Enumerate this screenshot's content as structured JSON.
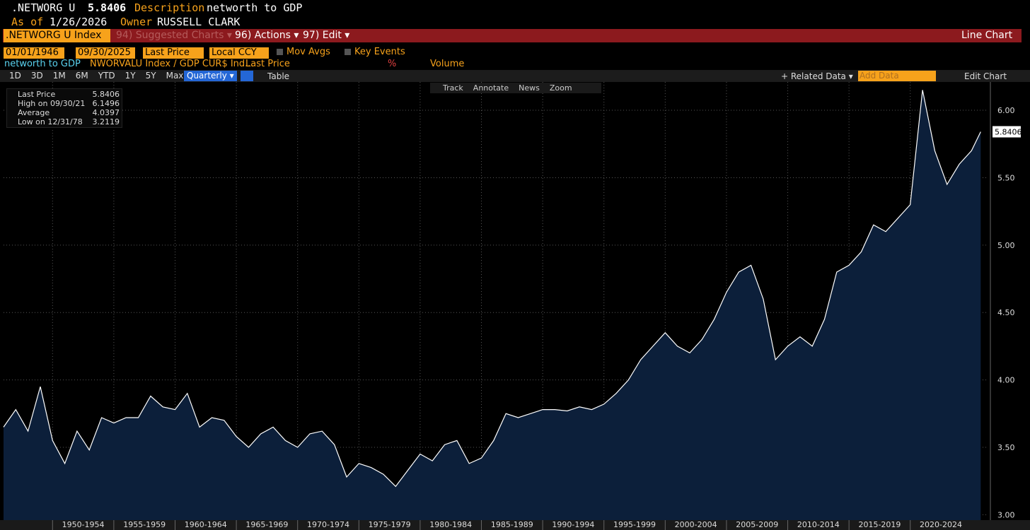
{
  "header": {
    "ticker": ".NETWORG U",
    "price": "5.8406",
    "description_label": "Description",
    "description": "networth to GDP",
    "asof_label": "As of",
    "date": "1/26/2026",
    "owner_label": "Owner",
    "owner": "RUSSELL CLARK"
  },
  "menubar": {
    "index": ".NETWORG U Index",
    "items": [
      "94) Suggested Charts ▾",
      "96) Actions ▾",
      "97) Edit ▾"
    ],
    "right": "Line Chart"
  },
  "controls": {
    "start": "01/01/1946",
    "end": "09/30/2025",
    "field": "Last Price",
    "currency": "Local CCY",
    "checks": [
      "Mov Avgs",
      "Key Events"
    ]
  },
  "legend_row": [
    "networth to GDP",
    "NWORVALU Index / GDP CUR$ Ind...",
    "Last Price",
    "%",
    "Volume"
  ],
  "toolbar": {
    "periods": [
      "1D",
      "3D",
      "1M",
      "6M",
      "YTD",
      "1Y",
      "5Y",
      "Max"
    ],
    "frequency": "Quarterly ▾",
    "table": "Table",
    "related": "+ Related Data ▾",
    "add": "Add Data",
    "edit": "Edit Chart"
  },
  "chart_tools": [
    "Track",
    "Annotate",
    "News",
    "Zoom"
  ],
  "stats": [
    [
      "Last Price",
      "5.8406"
    ],
    [
      "High on 09/30/21",
      "6.1496"
    ],
    [
      "Average",
      "4.0397"
    ],
    [
      "Low on 12/31/78",
      "3.2119"
    ]
  ],
  "chart_data": {
    "type": "line",
    "color": "#ffffff",
    "fill_color": "#0c1f3a",
    "grid": true,
    "x": [
      1946,
      1947,
      1948,
      1949,
      1950,
      1951,
      1952,
      1953,
      1954,
      1955,
      1956,
      1957,
      1958,
      1959,
      1960,
      1961,
      1962,
      1963,
      1964,
      1965,
      1966,
      1967,
      1968,
      1969,
      1970,
      1971,
      1972,
      1973,
      1974,
      1975,
      1976,
      1977,
      1978,
      1979,
      1980,
      1981,
      1982,
      1983,
      1984,
      1985,
      1986,
      1987,
      1988,
      1989,
      1990,
      1991,
      1992,
      1993,
      1994,
      1995,
      1996,
      1997,
      1998,
      1999,
      2000,
      2001,
      2002,
      2003,
      2004,
      2005,
      2006,
      2007,
      2008,
      2009,
      2010,
      2011,
      2012,
      2013,
      2014,
      2015,
      2016,
      2017,
      2018,
      2019,
      2020,
      2021,
      2022,
      2023,
      2024,
      2025,
      2025.75
    ],
    "values": [
      3.65,
      3.78,
      3.62,
      3.95,
      3.55,
      3.38,
      3.62,
      3.48,
      3.72,
      3.68,
      3.72,
      3.72,
      3.88,
      3.8,
      3.78,
      3.9,
      3.65,
      3.72,
      3.7,
      3.58,
      3.5,
      3.6,
      3.65,
      3.55,
      3.5,
      3.6,
      3.62,
      3.52,
      3.28,
      3.38,
      3.35,
      3.3,
      3.21,
      3.33,
      3.45,
      3.4,
      3.52,
      3.55,
      3.38,
      3.42,
      3.55,
      3.75,
      3.72,
      3.75,
      3.78,
      3.78,
      3.77,
      3.8,
      3.78,
      3.82,
      3.9,
      4.0,
      4.15,
      4.25,
      4.35,
      4.25,
      4.2,
      4.3,
      4.45,
      4.65,
      4.8,
      4.85,
      4.6,
      4.15,
      4.25,
      4.32,
      4.25,
      4.45,
      4.8,
      4.85,
      4.95,
      5.15,
      5.1,
      5.2,
      5.3,
      6.15,
      5.7,
      5.45,
      5.6,
      5.7,
      5.8406
    ],
    "xlim": [
      1946,
      2026.25
    ],
    "xticks": [
      {
        "value": 1950,
        "label": "1950-1954"
      },
      {
        "value": 1955,
        "label": "1955-1959"
      },
      {
        "value": 1960,
        "label": "1960-1964"
      },
      {
        "value": 1965,
        "label": "1965-1969"
      },
      {
        "value": 1970,
        "label": "1970-1974"
      },
      {
        "value": 1975,
        "label": "1975-1979"
      },
      {
        "value": 1980,
        "label": "1980-1984"
      },
      {
        "value": 1985,
        "label": "1985-1989"
      },
      {
        "value": 1990,
        "label": "1990-1994"
      },
      {
        "value": 1995,
        "label": "1995-1999"
      },
      {
        "value": 2000,
        "label": "2000-2004"
      },
      {
        "value": 2005,
        "label": "2005-2009"
      },
      {
        "value": 2010,
        "label": "2010-2014"
      },
      {
        "value": 2015,
        "label": "2015-2019"
      },
      {
        "value": 2020,
        "label": "2020-2024"
      }
    ],
    "ylim": [
      2.96,
      6.21
    ],
    "yticks": [
      {
        "value": 3,
        "label": "3.00"
      },
      {
        "value": 3.5,
        "label": "3.50"
      },
      {
        "value": 4,
        "label": "4.00"
      },
      {
        "value": 4.5,
        "label": "4.50"
      },
      {
        "value": 5,
        "label": "5.00"
      },
      {
        "value": 5.5,
        "label": "5.50"
      },
      {
        "value": 6,
        "label": "6.00"
      }
    ]
  }
}
